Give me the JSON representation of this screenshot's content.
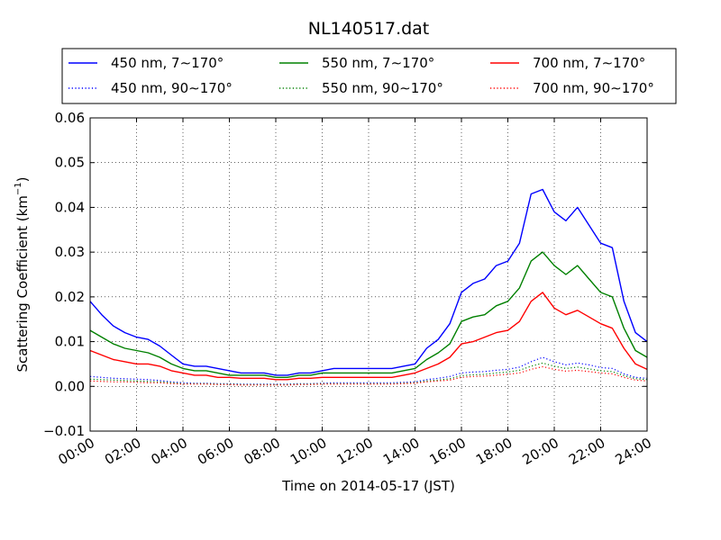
{
  "chart_data": {
    "type": "line",
    "title": "NL140517.dat",
    "xlabel": "Time on 2014-05-17 (JST)",
    "ylabel": "Scattering Coefficient (km",
    "ylabel_sup": "−1",
    "ylabel_close": ")",
    "xlim": [
      0,
      24
    ],
    "ylim": [
      -0.01,
      0.06
    ],
    "grid": true,
    "legend_position": "top",
    "x_ticks": [
      0,
      2,
      4,
      6,
      8,
      10,
      12,
      14,
      16,
      18,
      20,
      22,
      24
    ],
    "x_tick_labels": [
      "00:00",
      "02:00",
      "04:00",
      "06:00",
      "08:00",
      "10:00",
      "12:00",
      "14:00",
      "16:00",
      "18:00",
      "20:00",
      "22:00",
      "24:00"
    ],
    "y_ticks": [
      -0.01,
      0.0,
      0.01,
      0.02,
      0.03,
      0.04,
      0.05,
      0.06
    ],
    "y_tick_labels": [
      "−0.01",
      "0.00",
      "0.01",
      "0.02",
      "0.03",
      "0.04",
      "0.05",
      "0.06"
    ],
    "x": [
      0.0,
      0.5,
      1.0,
      1.5,
      2.0,
      2.5,
      3.0,
      3.5,
      4.0,
      4.5,
      5.0,
      5.5,
      6.0,
      6.5,
      7.0,
      7.5,
      8.0,
      8.5,
      9.0,
      9.5,
      10.0,
      10.5,
      11.0,
      11.5,
      12.0,
      12.5,
      13.0,
      13.5,
      14.0,
      14.5,
      15.0,
      15.5,
      16.0,
      16.5,
      17.0,
      17.5,
      18.0,
      18.5,
      19.0,
      19.5,
      20.0,
      20.5,
      21.0,
      21.5,
      22.0,
      22.5,
      23.0,
      23.5,
      24.0
    ],
    "series": [
      {
        "name": "450 nm, 7∼170°",
        "color": "#0000ff",
        "style": "solid",
        "values": [
          0.019,
          0.016,
          0.0135,
          0.012,
          0.011,
          0.0105,
          0.009,
          0.007,
          0.005,
          0.0045,
          0.0045,
          0.004,
          0.0035,
          0.003,
          0.003,
          0.003,
          0.0025,
          0.0025,
          0.003,
          0.003,
          0.0035,
          0.004,
          0.004,
          0.004,
          0.004,
          0.004,
          0.004,
          0.0045,
          0.005,
          0.0085,
          0.0105,
          0.014,
          0.021,
          0.023,
          0.024,
          0.027,
          0.028,
          0.032,
          0.043,
          0.044,
          0.039,
          0.037,
          0.04,
          0.036,
          0.032,
          0.031,
          0.019,
          0.012,
          0.01
        ]
      },
      {
        "name": "550 nm, 7∼170°",
        "color": "#008000",
        "style": "solid",
        "values": [
          0.0125,
          0.011,
          0.0095,
          0.0085,
          0.008,
          0.0075,
          0.0065,
          0.005,
          0.004,
          0.0035,
          0.0035,
          0.003,
          0.0025,
          0.0025,
          0.0025,
          0.0025,
          0.002,
          0.002,
          0.0025,
          0.0025,
          0.003,
          0.003,
          0.003,
          0.003,
          0.003,
          0.003,
          0.003,
          0.0035,
          0.004,
          0.006,
          0.0075,
          0.0095,
          0.0145,
          0.0155,
          0.016,
          0.018,
          0.019,
          0.022,
          0.028,
          0.03,
          0.027,
          0.025,
          0.027,
          0.024,
          0.021,
          0.02,
          0.013,
          0.008,
          0.0065
        ]
      },
      {
        "name": "700 nm, 7∼170°",
        "color": "#ff0000",
        "style": "solid",
        "values": [
          0.008,
          0.007,
          0.006,
          0.0055,
          0.005,
          0.005,
          0.0045,
          0.0035,
          0.003,
          0.0025,
          0.0025,
          0.002,
          0.002,
          0.0018,
          0.0018,
          0.0018,
          0.0015,
          0.0015,
          0.0018,
          0.0018,
          0.002,
          0.002,
          0.002,
          0.002,
          0.002,
          0.002,
          0.002,
          0.0025,
          0.003,
          0.004,
          0.005,
          0.0065,
          0.0095,
          0.01,
          0.011,
          0.012,
          0.0125,
          0.0145,
          0.019,
          0.021,
          0.0175,
          0.016,
          0.017,
          0.0155,
          0.014,
          0.013,
          0.0085,
          0.005,
          0.0038
        ]
      },
      {
        "name": "450 nm, 90∼170°",
        "color": "#0000ff",
        "style": "dotted",
        "values": [
          0.0022,
          0.002,
          0.0018,
          0.0017,
          0.0016,
          0.0015,
          0.0013,
          0.001,
          0.0008,
          0.0007,
          0.0007,
          0.0006,
          0.0006,
          0.0005,
          0.0005,
          0.0005,
          0.0005,
          0.0005,
          0.0006,
          0.0006,
          0.0007,
          0.0008,
          0.0008,
          0.0008,
          0.0008,
          0.0008,
          0.0008,
          0.0009,
          0.001,
          0.0015,
          0.0018,
          0.0022,
          0.003,
          0.0032,
          0.0033,
          0.0036,
          0.0038,
          0.0043,
          0.0055,
          0.0065,
          0.0055,
          0.0048,
          0.0052,
          0.0048,
          0.0042,
          0.004,
          0.0028,
          0.002,
          0.0018
        ]
      },
      {
        "name": "550 nm, 90∼170°",
        "color": "#008000",
        "style": "dotted",
        "values": [
          0.0016,
          0.0015,
          0.0014,
          0.0013,
          0.0012,
          0.0011,
          0.001,
          0.0008,
          0.0006,
          0.0006,
          0.0006,
          0.0005,
          0.0005,
          0.0004,
          0.0004,
          0.0004,
          0.0004,
          0.0004,
          0.0005,
          0.0005,
          0.0006,
          0.0006,
          0.0006,
          0.0006,
          0.0006,
          0.0006,
          0.0006,
          0.0007,
          0.0008,
          0.0012,
          0.0014,
          0.0017,
          0.0024,
          0.0026,
          0.0027,
          0.003,
          0.0032,
          0.0036,
          0.0045,
          0.0052,
          0.0045,
          0.004,
          0.0043,
          0.0039,
          0.0035,
          0.0033,
          0.0024,
          0.0017,
          0.0015
        ]
      },
      {
        "name": "700 nm, 90∼170°",
        "color": "#ff0000",
        "style": "dotted",
        "values": [
          0.0012,
          0.0011,
          0.001,
          0.001,
          0.0009,
          0.0008,
          0.0008,
          0.0006,
          0.0005,
          0.0005,
          0.0005,
          0.0004,
          0.0004,
          0.0003,
          0.0003,
          0.0003,
          0.0003,
          0.0003,
          0.0004,
          0.0004,
          0.0005,
          0.0005,
          0.0005,
          0.0005,
          0.0005,
          0.0005,
          0.0005,
          0.0006,
          0.0007,
          0.001,
          0.0012,
          0.0014,
          0.002,
          0.0022,
          0.0023,
          0.0025,
          0.0027,
          0.003,
          0.0038,
          0.0044,
          0.0038,
          0.0034,
          0.0036,
          0.0033,
          0.003,
          0.0028,
          0.002,
          0.0014,
          0.0012
        ]
      }
    ]
  }
}
